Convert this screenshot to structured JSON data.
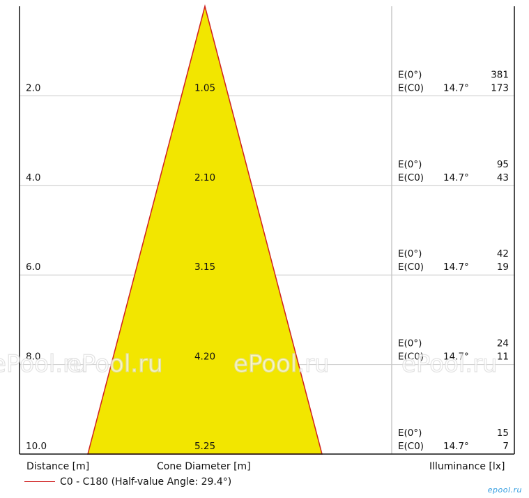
{
  "chart_data": {
    "type": "cone",
    "distances": [
      "2.0",
      "4.0",
      "6.0",
      "8.0",
      "10.0"
    ],
    "cone_diameters": [
      "1.05",
      "2.10",
      "3.15",
      "4.20",
      "5.25"
    ],
    "illuminance_rows": [
      {
        "label_center": "E(0°)",
        "value_center": "381",
        "label_c0": "E(C0)",
        "angle": "14.7°",
        "value_c0": "173"
      },
      {
        "label_center": "E(0°)",
        "value_center": "95",
        "label_c0": "E(C0)",
        "angle": "14.7°",
        "value_c0": "43"
      },
      {
        "label_center": "E(0°)",
        "value_center": "42",
        "label_c0": "E(C0)",
        "angle": "14.7°",
        "value_c0": "19"
      },
      {
        "label_center": "E(0°)",
        "value_center": "24",
        "label_c0": "E(C0)",
        "angle": "14.7°",
        "value_c0": "11"
      },
      {
        "label_center": "E(0°)",
        "value_center": "15",
        "label_c0": "E(C0)",
        "angle": "14.7°",
        "value_c0": "7"
      }
    ],
    "xlabel_left": "Distance [m]",
    "xlabel_center": "Cone Diameter [m]",
    "xlabel_right": "Illuminance [lx]",
    "legend": "C0 - C180 (Half-value Angle: 29.4°)",
    "colors": {
      "cone_fill": "#f2e600",
      "cone_edge": "#d02020",
      "grid": "#c8c8c8",
      "frame": "#111111"
    },
    "watermark": "ePool.ru",
    "logo": "epool.ru"
  }
}
